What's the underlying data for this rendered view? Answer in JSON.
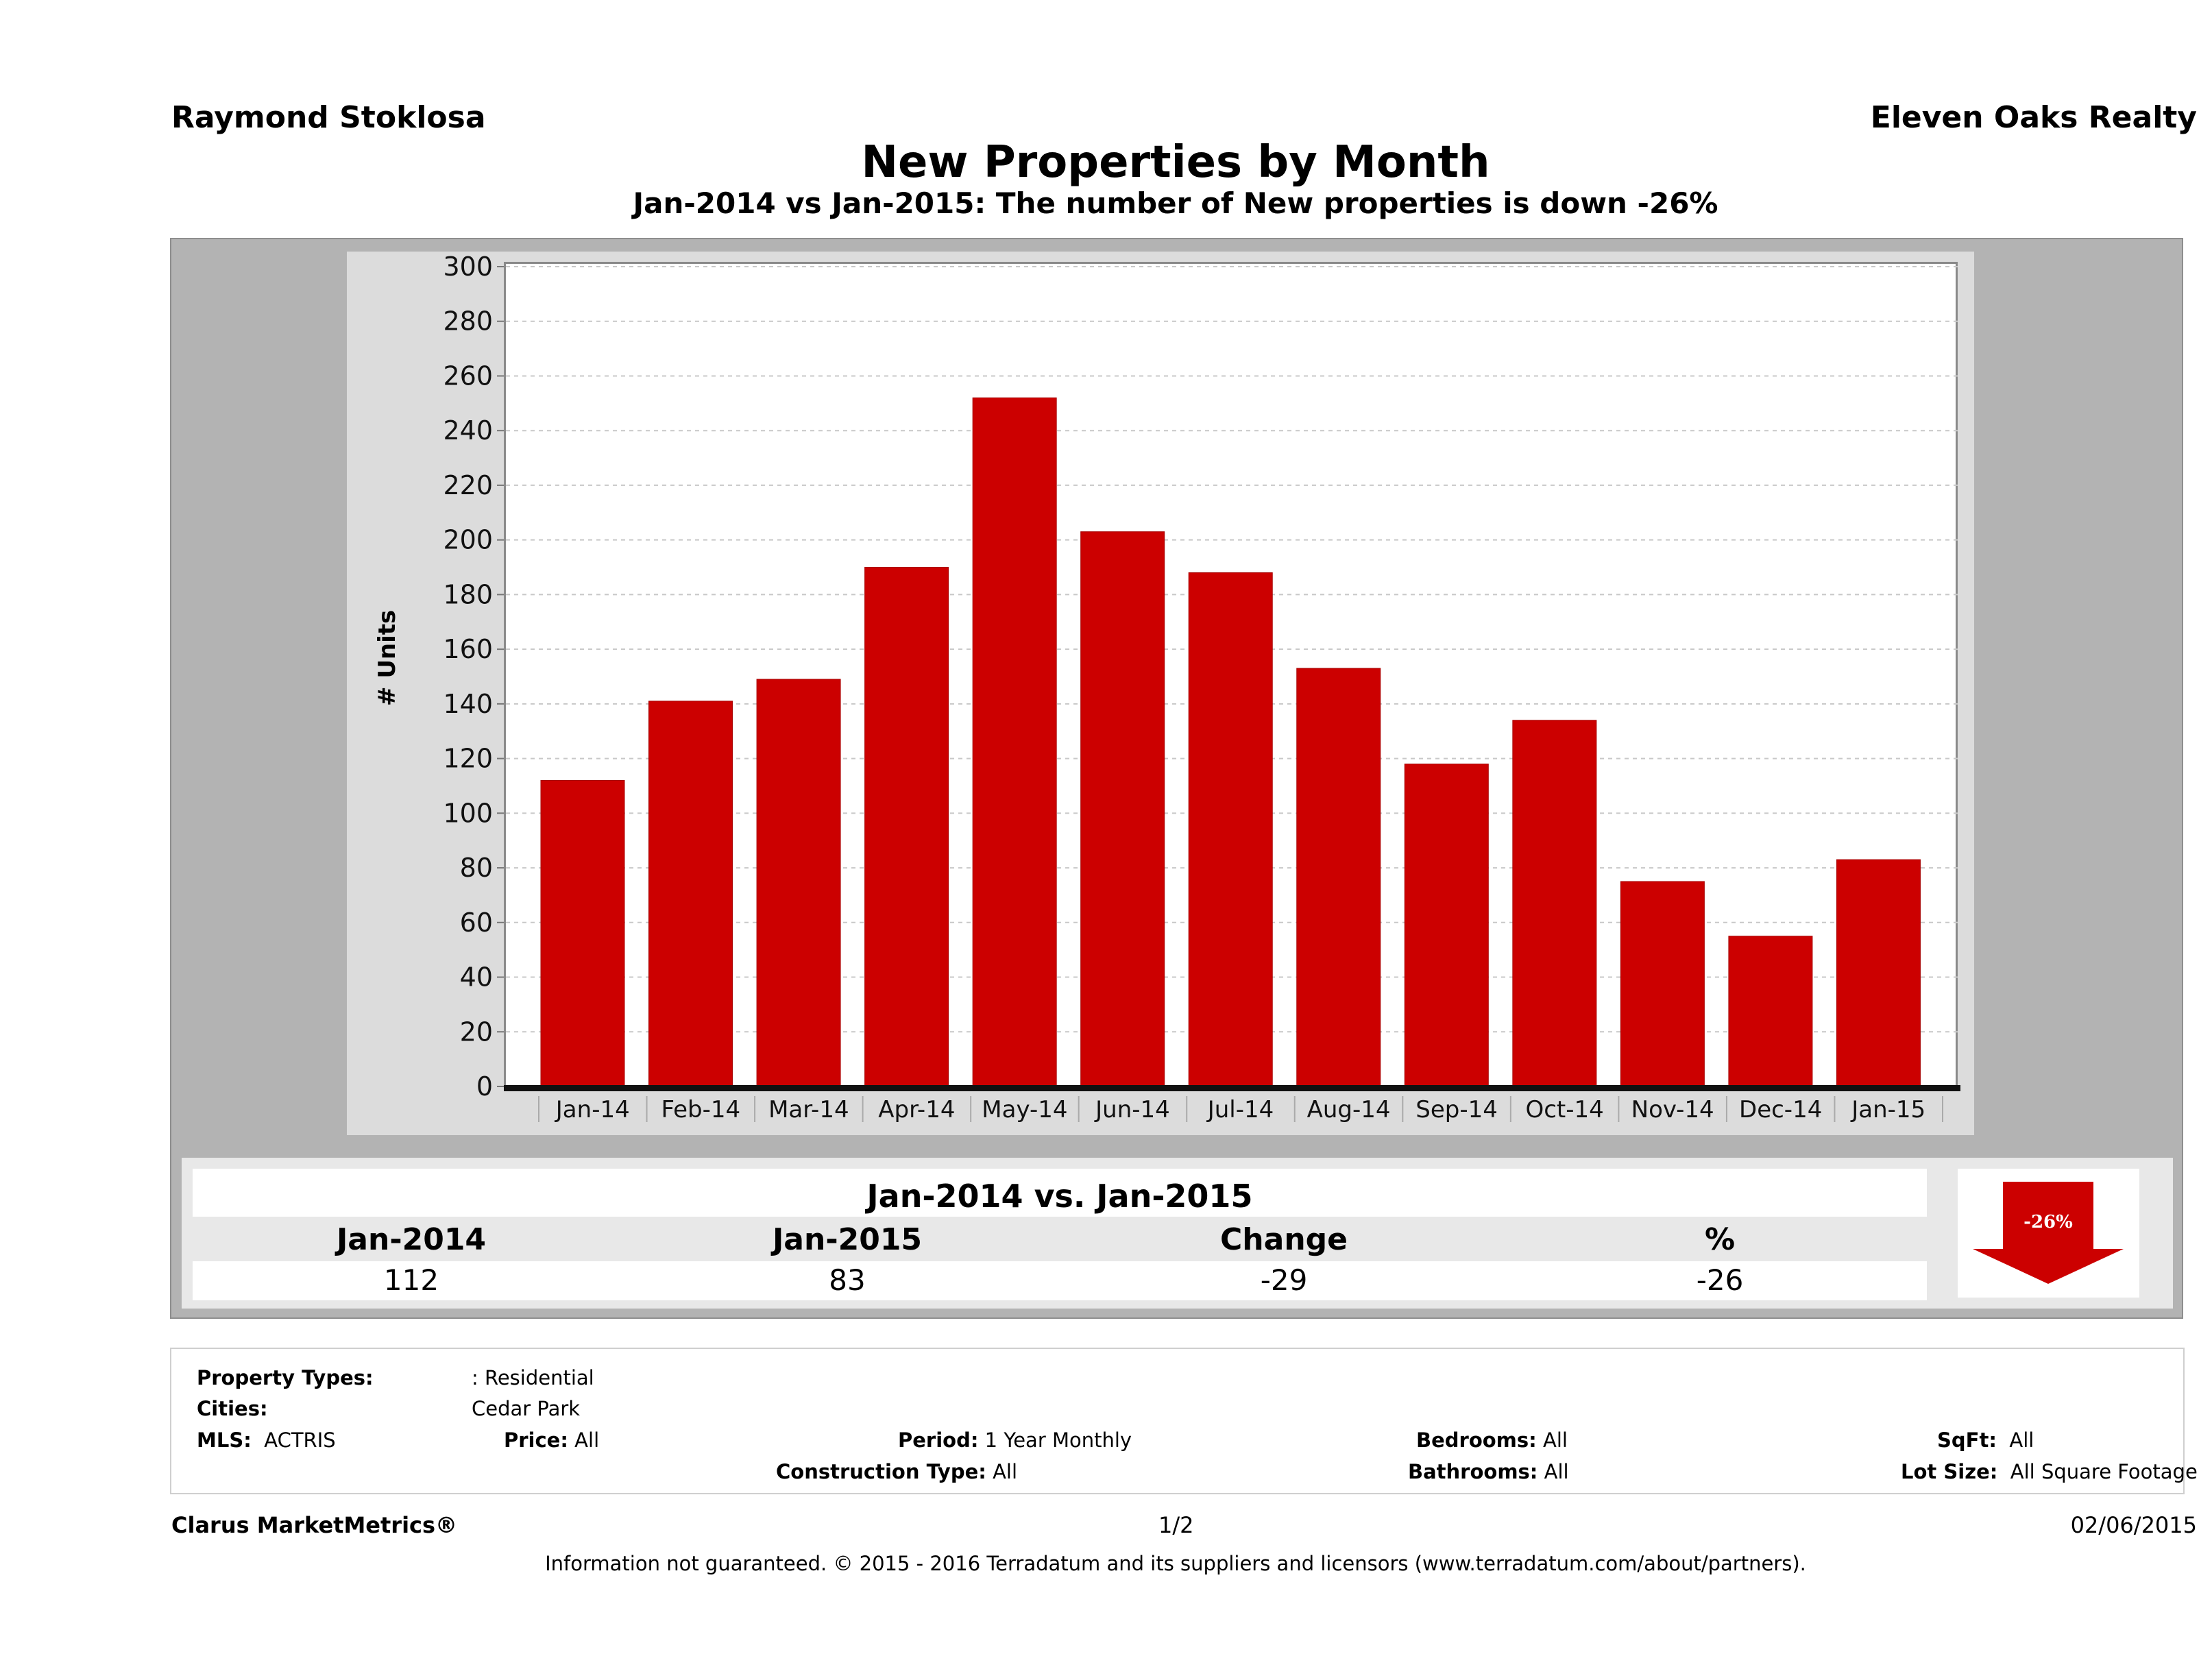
{
  "header": {
    "agent_name": "Raymond Stoklosa",
    "brokerage": "Eleven Oaks Realty",
    "title": "New Properties by Month",
    "subtitle": "Jan-2014 vs Jan-2015: The number of New  properties is down -26%"
  },
  "chart_data": {
    "type": "bar",
    "title": "New Properties by Month",
    "xlabel": "",
    "ylabel": "# Units",
    "categories": [
      "Jan-14",
      "Feb-14",
      "Mar-14",
      "Apr-14",
      "May-14",
      "Jun-14",
      "Jul-14",
      "Aug-14",
      "Sep-14",
      "Oct-14",
      "Nov-14",
      "Dec-14",
      "Jan-15"
    ],
    "values": [
      112,
      141,
      149,
      190,
      252,
      203,
      188,
      153,
      118,
      134,
      75,
      55,
      83
    ],
    "ylim": [
      0,
      300
    ],
    "yticks": [
      0,
      20,
      40,
      60,
      80,
      100,
      120,
      140,
      160,
      180,
      200,
      220,
      240,
      260,
      280,
      300
    ],
    "grid": true,
    "legend": "none",
    "bar_color": "#cc0000"
  },
  "comparison": {
    "title": "Jan-2014 vs. Jan-2015",
    "columns": [
      "Jan-2014",
      "Jan-2015",
      "Change",
      "%"
    ],
    "values": [
      "112",
      "83",
      "-29",
      "-26"
    ],
    "badge": "-26%",
    "badge_direction": "down",
    "badge_color": "#cc0000"
  },
  "filters": {
    "property_types_label": "Property Types:",
    "property_types_value": ": Residential",
    "cities_label": "Cities:",
    "cities_value": "Cedar Park",
    "mls_label": "MLS:",
    "mls_value": "ACTRIS",
    "price_label": "Price:",
    "price_value": "All",
    "period_label": "Period:",
    "period_value": "1 Year Monthly",
    "construction_label": "Construction Type:",
    "construction_value": "All",
    "bedrooms_label": "Bedrooms:",
    "bedrooms_value": "All",
    "bathrooms_label": "Bathrooms:",
    "bathrooms_value": "All",
    "sqft_label": "SqFt:",
    "sqft_value": "All",
    "lotsize_label": "Lot Size:",
    "lotsize_value": "All Square Footage"
  },
  "footer": {
    "product": "Clarus MarketMetrics®",
    "page": "1/2",
    "date": "02/06/2015",
    "disclaimer": "Information not guaranteed. © 2015 - 2016 Terradatum and its suppliers and licensors (www.terradatum.com/about/partners)."
  }
}
